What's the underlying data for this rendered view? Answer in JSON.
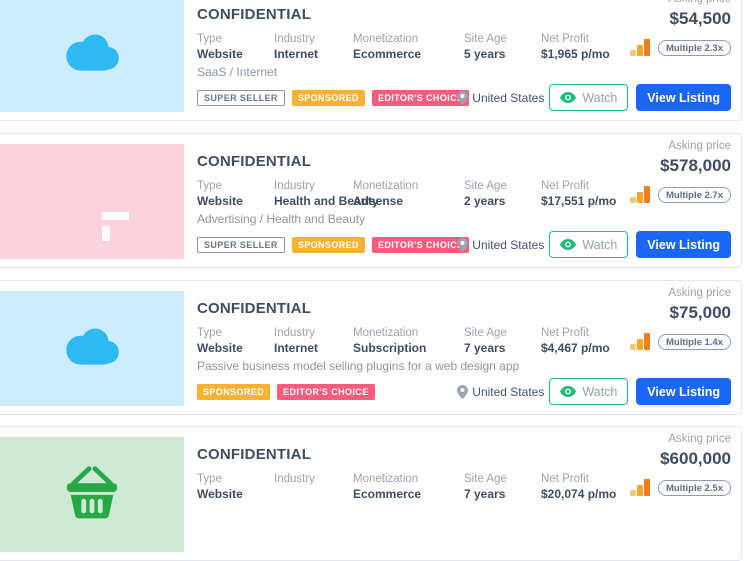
{
  "labels": {
    "type": "Type",
    "industry": "Industry",
    "monetization": "Monetization",
    "site_age": "Site Age",
    "net_profit": "Net Profit",
    "asking_price": "Asking price"
  },
  "buttons": {
    "watch": "Watch",
    "view_listing": "View Listing"
  },
  "colors": {
    "view_listing_blue": "#1a66f5",
    "watch_green": "#1fbd7a",
    "sponsored_orange": "#f9b234",
    "editors_pink": "#f95c7c"
  },
  "listings": [
    {
      "title": "CONFIDENTIAL",
      "type": "Website",
      "industry": "Internet",
      "monetization": "Ecommerce",
      "site_age": "5 years",
      "net_profit": "$1,965 p/mo",
      "asking_price": "$54,500",
      "multiple": "Multiple 2.3x",
      "subtitle": "SaaS / Internet",
      "badges": [
        {
          "label": "SUPER SELLER",
          "style": "outline"
        },
        {
          "label": "SPONSORED",
          "style": "orange"
        },
        {
          "label": "EDITOR'S CHOICE",
          "style": "pink"
        }
      ],
      "location": "United States",
      "icon": "cloud",
      "thumb_bg": "#cdecfc",
      "icon_color": "#2fb9f3"
    },
    {
      "title": "CONFIDENTIAL",
      "type": "Website",
      "industry": "Health and Beauty",
      "monetization": "Adsense",
      "site_age": "2 years",
      "net_profit": "$17,551 p/mo",
      "asking_price": "$578,000",
      "multiple": "Multiple 2.7x",
      "subtitle": "Advertising / Health and Beauty",
      "badges": [
        {
          "label": "SUPER SELLER",
          "style": "outline"
        },
        {
          "label": "SPONSORED",
          "style": "orange"
        },
        {
          "label": "EDITOR'S CHOICE",
          "style": "pink"
        }
      ],
      "location": "United States",
      "icon": "layout",
      "thumb_bg": "#fbd2dd",
      "icon_color": "#f4536e"
    },
    {
      "title": "CONFIDENTIAL",
      "type": "Website",
      "industry": "Internet",
      "monetization": "Subscription",
      "site_age": "7 years",
      "net_profit": "$4,467 p/mo",
      "asking_price": "$75,000",
      "multiple": "Multiple 1.4x",
      "subtitle": "Passive business model selling plugins for a web design app",
      "badges": [
        {
          "label": "SPONSORED",
          "style": "orange"
        },
        {
          "label": "EDITOR'S CHOICE",
          "style": "pink"
        }
      ],
      "location": "United States",
      "icon": "cloud",
      "thumb_bg": "#cdecfc",
      "icon_color": "#2fb9f3"
    },
    {
      "title": "CONFIDENTIAL",
      "type": "Website",
      "industry": "",
      "monetization": "Ecommerce",
      "site_age": "7 years",
      "net_profit": "$20,074 p/mo",
      "asking_price": "$600,000",
      "multiple": "Multiple 2.5x",
      "subtitle": "",
      "badges": [],
      "location": "",
      "icon": "basket",
      "thumb_bg": "#cee9d5",
      "icon_color": "#27a844"
    }
  ]
}
